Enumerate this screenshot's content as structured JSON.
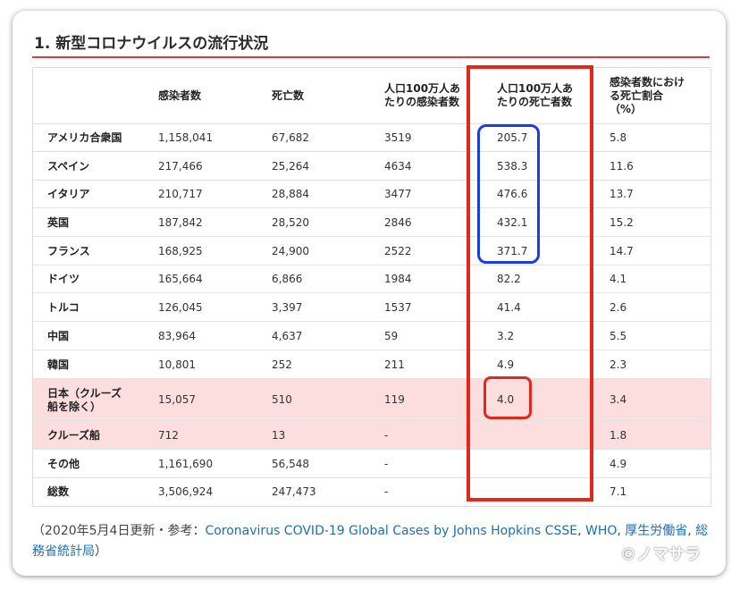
{
  "heading": "1. 新型コロナウイルスの流行状況",
  "table": {
    "headers": [
      "",
      "感染者数",
      "死亡数",
      "人口100万人あたりの感染者数",
      "人口100万人あたりの死亡者数",
      "感染者数における死亡割合（%）"
    ],
    "header_lines": {
      "col3": [
        "人口100万人あ",
        "たりの感染者数"
      ],
      "col4": [
        "人口100万人あ",
        "たりの死亡者数"
      ],
      "col5": [
        "感染者数におけ",
        "る死亡割合",
        "（%）"
      ]
    },
    "rows": [
      {
        "name": "アメリカ合衆国",
        "cases": "1,158,041",
        "deaths": "67,682",
        "cases_per_m": "3519",
        "deaths_per_m": "205.7",
        "fatality": "5.8"
      },
      {
        "name": "スペイン",
        "cases": "217,466",
        "deaths": "25,264",
        "cases_per_m": "4634",
        "deaths_per_m": "538.3",
        "fatality": "11.6"
      },
      {
        "name": "イタリア",
        "cases": "210,717",
        "deaths": "28,884",
        "cases_per_m": "3477",
        "deaths_per_m": "476.6",
        "fatality": "13.7"
      },
      {
        "name": "英国",
        "cases": "187,842",
        "deaths": "28,520",
        "cases_per_m": "2846",
        "deaths_per_m": "432.1",
        "fatality": "15.2"
      },
      {
        "name": "フランス",
        "cases": "168,925",
        "deaths": "24,900",
        "cases_per_m": "2522",
        "deaths_per_m": "371.7",
        "fatality": "14.7"
      },
      {
        "name": "ドイツ",
        "cases": "165,664",
        "deaths": "6,866",
        "cases_per_m": "1984",
        "deaths_per_m": "82.2",
        "fatality": "4.1"
      },
      {
        "name": "トルコ",
        "cases": "126,045",
        "deaths": "3,397",
        "cases_per_m": "1537",
        "deaths_per_m": "41.4",
        "fatality": "2.6"
      },
      {
        "name": "中国",
        "cases": "83,964",
        "deaths": "4,637",
        "cases_per_m": "59",
        "deaths_per_m": "3.2",
        "fatality": "5.5"
      },
      {
        "name": "韓国",
        "cases": "10,801",
        "deaths": "252",
        "cases_per_m": "211",
        "deaths_per_m": "4.9",
        "fatality": "2.3"
      },
      {
        "name": "日本（クルーズ船を除く）",
        "name_lines": [
          "日本（クルーズ",
          "船を除く）"
        ],
        "cases": "15,057",
        "deaths": "510",
        "cases_per_m": "119",
        "deaths_per_m": "4.0",
        "fatality": "3.4",
        "highlight": true
      },
      {
        "name": "クルーズ船",
        "cases": "712",
        "deaths": "13",
        "cases_per_m": "-",
        "deaths_per_m": "",
        "fatality": "1.8",
        "highlight": true
      },
      {
        "name": "その他",
        "cases": "1,161,690",
        "deaths": "56,548",
        "cases_per_m": "-",
        "deaths_per_m": "",
        "fatality": "4.9"
      },
      {
        "name": "総数",
        "cases": "3,506,924",
        "deaths": "247,473",
        "cases_per_m": "-",
        "deaths_per_m": "",
        "fatality": "7.1"
      }
    ]
  },
  "source": {
    "prefix": "（2020年5月4日更新・参考：",
    "link1": "Coronavirus COVID-19 Global Cases by Johns Hopkins CSSE",
    "sep1": ", ",
    "link2": "WHO",
    "sep2": ", ",
    "link3": "厚生労働省",
    "sep3": ", ",
    "link4": "総務省統計局",
    "suffix": "）"
  },
  "watermark": "©ノマサラ",
  "colors": {
    "highlight_row": "#fcdede",
    "red_frame": "#e5261b",
    "blue_frame": "#1a3ee0",
    "link": "#1a6fb5"
  }
}
